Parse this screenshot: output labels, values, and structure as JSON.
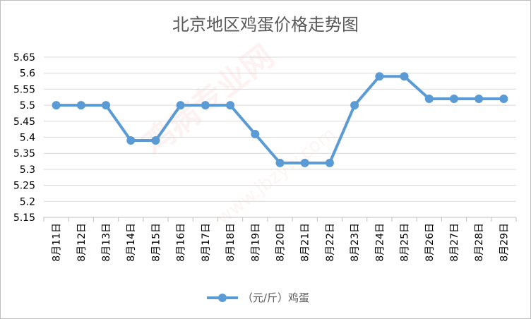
{
  "chart_data": {
    "type": "line",
    "title": "北京地区鸡蛋价格走势图",
    "xlabel": "",
    "ylabel": "",
    "categories": [
      "8月11日",
      "8月12日",
      "8月13日",
      "8月14日",
      "8月15日",
      "8月16日",
      "8月17日",
      "8月18日",
      "8月19日",
      "8月20日",
      "8月21日",
      "8月22日",
      "8月23日",
      "8月24日",
      "8月25日",
      "8月26日",
      "8月27日",
      "8月28日",
      "8月29日"
    ],
    "series": [
      {
        "name": "（元/斤）鸡蛋",
        "values": [
          5.5,
          5.5,
          5.5,
          5.39,
          5.39,
          5.5,
          5.5,
          5.5,
          5.41,
          5.32,
          5.32,
          5.32,
          5.5,
          5.59,
          5.59,
          5.52,
          5.52,
          5.52,
          5.52
        ],
        "color": "#5b9bd5"
      }
    ],
    "ylim": [
      5.15,
      5.65
    ],
    "yticks": [
      "5.15",
      "5.2",
      "5.25",
      "5.3",
      "5.35",
      "5.4",
      "5.45",
      "5.5",
      "5.55",
      "5.6",
      "5.65"
    ],
    "grid": true,
    "legend_position": "bottom",
    "colors": {
      "line": "#5b9bd5",
      "grid": "#d9d9d9",
      "axis": "#bfbfbf"
    }
  },
  "watermark": {
    "text": "鸡病专业网",
    "url": "www.jbzyw.com",
    "decorative": true
  }
}
